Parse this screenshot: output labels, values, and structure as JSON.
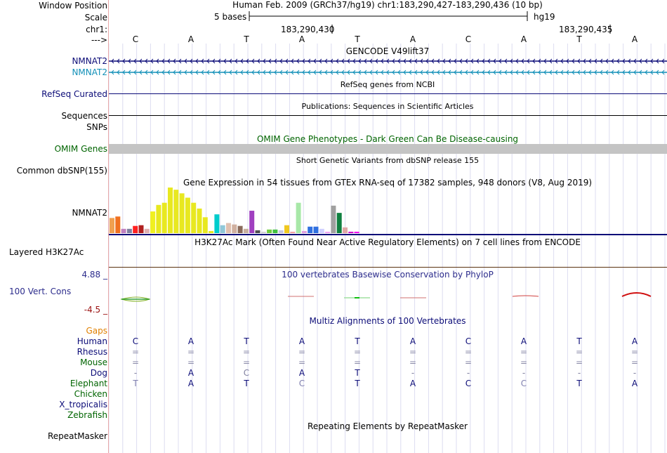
{
  "labels": {
    "window_position": "Window Position",
    "scale": "Scale",
    "chr": "chr1:",
    "arrow": "--->",
    "nmnat2_a": "NMNAT2",
    "nmnat2_b": "NMNAT2",
    "refseq": "RefSeq Curated",
    "sequences": "Sequences",
    "snps": "SNPs",
    "omim_genes": "OMIM Genes",
    "common_dbsnp": "Common dbSNP(155)",
    "gtex_gene": "NMNAT2",
    "h3k27ac": "Layered H3K27Ac",
    "cons_max": "4.88 _",
    "cons_label": "100 Vert. Cons",
    "cons_min": "-4.5 _",
    "gaps": "Gaps",
    "species": [
      "Human",
      "Rhesus",
      "Mouse",
      "Dog",
      "Elephant",
      "Chicken",
      "X_tropicalis",
      "Zebrafish"
    ],
    "repeatmasker": "RepeatMasker"
  },
  "header": {
    "assembly": "Human Feb. 2009 (GRCh37/hg19)   chr1:183,290,427-183,290,436 (10 bp)",
    "scale_text": "5 bases",
    "scale_db": "hg19",
    "pos1": "183,290,430",
    "pos2": "183,290,435"
  },
  "bases": [
    "C",
    "A",
    "T",
    "A",
    "T",
    "A",
    "C",
    "A",
    "T",
    "A"
  ],
  "track_titles": {
    "gencode": "GENCODE V49lift37",
    "refseq": "RefSeq genes from NCBI",
    "publications": "Publications: Sequences in Scientific Articles",
    "omim": "OMIM Gene Phenotypes - Dark Green Can Be Disease-causing",
    "dbsnp": "Short Genetic Variants from dbSNP release 155",
    "gtex": "Gene Expression in 54 tissues from GTEx RNA-seq of 17382 samples, 948 donors (V8, Aug 2019)",
    "h3k27ac": "H3K27Ac Mark (Often Found Near Active Regulatory Elements) on 7 cell lines from ENCODE",
    "phylop": "100 vertebrates Basewise Conservation by PhyloP",
    "multiz": "Multiz Alignments of 100 Vertebrates",
    "repeatmasker": "Repeating Elements by RepeatMasker"
  },
  "alignment": {
    "Rhesus": [
      "=",
      "=",
      "=",
      "=",
      "=",
      "=",
      "=",
      "=",
      "=",
      "="
    ],
    "Mouse": [
      "=",
      "=",
      "=",
      "=",
      "=",
      "=",
      "=",
      "=",
      "=",
      "="
    ],
    "Dog": [
      "-",
      "A",
      "C",
      "A",
      "T",
      "-",
      "-",
      "-",
      "-",
      "-"
    ],
    "Elephant": [
      "T",
      "A",
      "T",
      "C",
      "T",
      "A",
      "C",
      "C",
      "T",
      "A"
    ]
  },
  "chart_data": {
    "type": "bar",
    "title": "Gene Expression in 54 tissues from GTEx RNA-seq of 17382 samples, 948 donors (V8, Aug 2019)",
    "xlabel": "",
    "ylabel": "",
    "values": [
      21,
      23,
      6,
      6,
      10,
      11,
      6,
      30,
      39,
      42,
      63,
      60,
      55,
      49,
      42,
      34,
      22,
      3,
      26,
      11,
      14,
      12,
      10,
      6,
      31,
      4,
      2,
      5,
      5,
      4,
      11,
      2,
      42,
      3,
      9,
      9,
      6,
      2,
      38,
      28,
      8,
      2,
      2
    ],
    "colors": [
      "#f0a050",
      "#f07020",
      "#c080c0",
      "#8080a0",
      "#ff2020",
      "#b02020",
      "#e0b0b0",
      "#f0f020",
      "#e8e820",
      "#e8e820",
      "#e8e820",
      "#e8e820",
      "#e8e820",
      "#e8e820",
      "#e8e820",
      "#e8e820",
      "#e8e820",
      "#e8e820",
      "#00cccc",
      "#90c8d8",
      "#e0c0b0",
      "#d0b0a0",
      "#8a6a5a",
      "#c8b0a0",
      "#a040c0",
      "#505050",
      "#d0d0d0",
      "#70cc40",
      "#40c040",
      "#c8c8e0",
      "#f0c820",
      "#f0a0a0",
      "#a8e8a8",
      "#e0a0e0",
      "#3070e0",
      "#3070e0",
      "#d0d0ff",
      "#f0a0f0",
      "#a0a0a0",
      "#108040",
      "#e0a8a8",
      "#d000d0",
      "#f000f0"
    ]
  }
}
